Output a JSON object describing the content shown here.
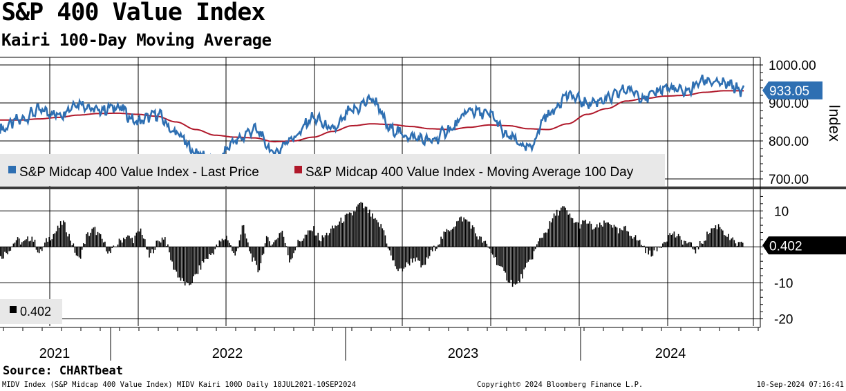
{
  "header": {
    "title": "S&P 400 Value Index",
    "subtitle": "Kairi 100-Day Moving Average"
  },
  "footer": {
    "source": "Source: CHARTbeat",
    "description": "MIDV Index (S&P Midcap 400 Value Index) MIDV Kairi 100D  Daily 18JUL2021-10SEP2024",
    "copyright": "Copyright© 2024 Bloomberg Finance L.P.",
    "timestamp": "10-Sep-2024 07:16:41"
  },
  "colors": {
    "price": "#2e6fb2",
    "moving_average": "#b0182a",
    "kairi": "#000000",
    "legend_bg": "#e8e8e8",
    "price_tag": "#2e6fb2"
  },
  "chart_data": [
    {
      "type": "line",
      "ylabel": "Index",
      "ylim": [
        680,
        1020
      ],
      "y_ticks": [
        "1000.00",
        "900.00",
        "800.00",
        "700.00"
      ],
      "y_tick_values": [
        1000,
        900,
        800,
        700
      ],
      "x": [
        "2021-07",
        "2021-08",
        "2021-09",
        "2021-10",
        "2021-11",
        "2021-12",
        "2022-01",
        "2022-02",
        "2022-03",
        "2022-04",
        "2022-05",
        "2022-06",
        "2022-07",
        "2022-08",
        "2022-09",
        "2022-10",
        "2022-11",
        "2022-12",
        "2023-01",
        "2023-02",
        "2023-03",
        "2023-04",
        "2023-05",
        "2023-06",
        "2023-07",
        "2023-08",
        "2023-09",
        "2023-10",
        "2023-11",
        "2023-12",
        "2024-01",
        "2024-02",
        "2024-03",
        "2024-04",
        "2024-05",
        "2024-06",
        "2024-07",
        "2024-08",
        "2024-09"
      ],
      "series": [
        {
          "name": "S&P Midcap 400 Value Index - Last Price",
          "values": [
            830,
            855,
            880,
            870,
            900,
            880,
            890,
            850,
            870,
            820,
            770,
            740,
            800,
            830,
            770,
            810,
            860,
            830,
            880,
            910,
            830,
            810,
            800,
            830,
            880,
            870,
            810,
            780,
            870,
            920,
            900,
            910,
            935,
            915,
            940,
            930,
            960,
            950,
            933.05
          ]
        },
        {
          "name": "S&P Midcap 400 Value Index - Moving Average 100 Day",
          "values": [
            855,
            855,
            858,
            862,
            868,
            872,
            873,
            870,
            865,
            850,
            830,
            815,
            810,
            808,
            798,
            800,
            810,
            825,
            840,
            845,
            843,
            838,
            832,
            830,
            836,
            842,
            840,
            832,
            830,
            845,
            870,
            885,
            905,
            912,
            918,
            920,
            928,
            932,
            932
          ]
        }
      ],
      "price_tag": "933.05"
    },
    {
      "type": "bar",
      "ylim": [
        -22,
        16
      ],
      "y_ticks": [
        "10",
        "-10",
        "-20"
      ],
      "y_tick_values": [
        10,
        -10,
        -20
      ],
      "series": [
        {
          "name": "",
          "values": [
            -3,
            -1,
            2,
            1,
            3,
            -2,
            2,
            4,
            7,
            2,
            -4,
            3,
            5,
            2,
            -2,
            1,
            3,
            2,
            5,
            -3,
            1,
            3,
            -5,
            -9,
            -11,
            -8,
            -4,
            -2,
            1,
            3,
            -3,
            6,
            -2,
            -7,
            2,
            1,
            5,
            -4,
            1,
            3,
            5,
            2,
            4,
            6,
            8,
            9,
            12,
            10,
            7,
            5,
            -3,
            -7,
            -5,
            -3,
            -6,
            -2,
            1,
            4,
            6,
            8,
            7,
            3,
            1,
            -2,
            -6,
            -9,
            -11,
            -7,
            -3,
            2,
            5,
            9,
            11,
            8,
            6,
            7,
            5,
            6,
            7,
            4,
            5,
            3,
            1,
            -2,
            -1,
            2,
            4,
            2,
            1,
            -1,
            2,
            5,
            6,
            3,
            1,
            0.402
          ]
        }
      ],
      "value_tag": "0.402",
      "legend_value": "0.402"
    }
  ],
  "x_axis": {
    "years": [
      "2021",
      "2022",
      "2023",
      "2024"
    ]
  }
}
